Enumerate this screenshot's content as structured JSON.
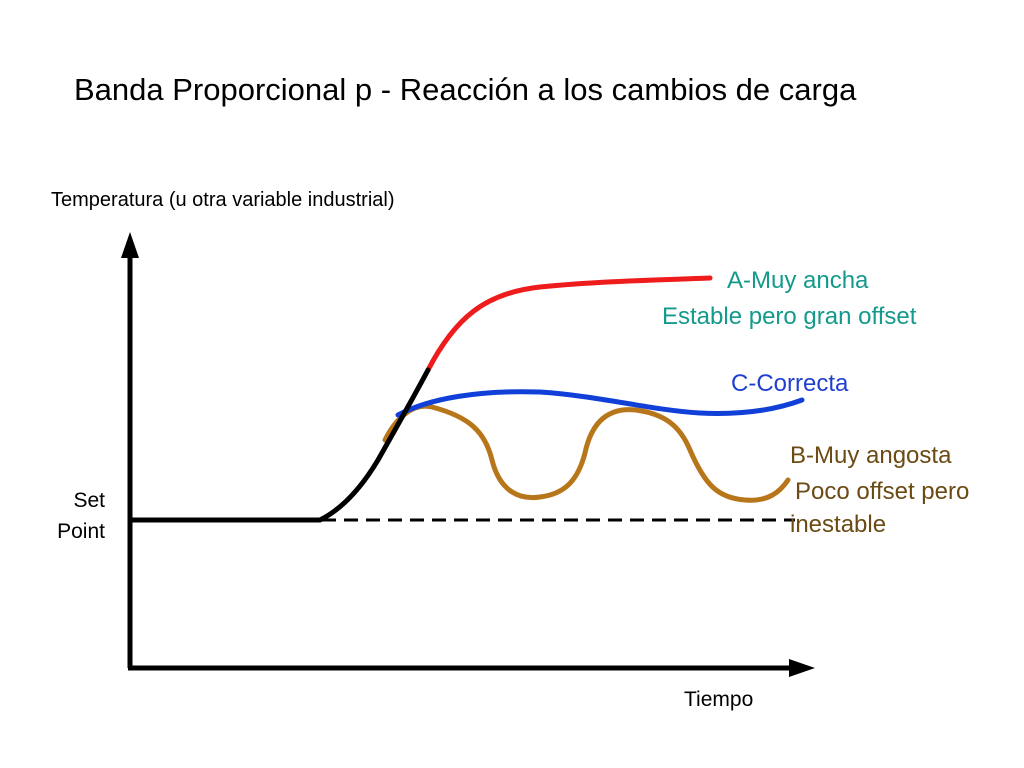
{
  "title": "Banda Proporcional p - Reacción a los cambios de carga",
  "y_axis_label": "Temperatura (u otra variable industrial)",
  "x_axis_label": "Tiempo",
  "setpoint_label": {
    "line1": "Set",
    "line2": "Point"
  },
  "curves": {
    "a": {
      "line1": "A-Muy ancha",
      "line2": "Estable pero gran offset",
      "color": "#ee1c1c"
    },
    "c": {
      "line1": "C-Correcta",
      "color": "#1040d8"
    },
    "b": {
      "line1": "B-Muy angosta",
      "line2": "Poco offset pero",
      "line3": "inestable",
      "color": "#b8761b"
    }
  },
  "label_colors": {
    "a": "#149a8c",
    "c": "#1f3fcf",
    "b": "#6b4a14"
  },
  "axis_color": "#000000"
}
